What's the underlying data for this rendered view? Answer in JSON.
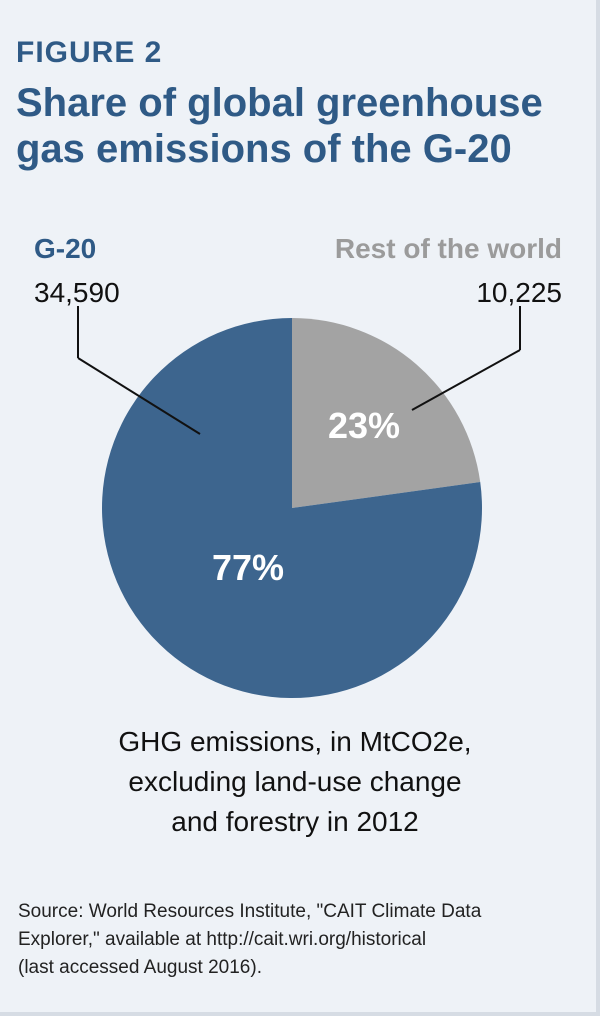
{
  "figure_label": "FIGURE 2",
  "title_line1": "Share of global greenhouse",
  "title_line2": "gas emissions of the G-20",
  "caption_lines": [
    "GHG emissions, in MtCO2e,",
    "excluding land-use change",
    "and forestry in 2012"
  ],
  "source_lines": [
    "Source: World Resources Institute, \"CAIT Climate Data",
    "Explorer,\" available at http://cait.wri.org/historical",
    "(last accessed August 2016)."
  ],
  "colors": {
    "g20": "#3d658e",
    "rest": "#a3a3a3",
    "label_blue": "#2f5a86",
    "label_gray": "#9b9b9b"
  },
  "chart_data": {
    "type": "pie",
    "slices": [
      {
        "name": "Rest of the world",
        "value": 10225,
        "value_label": "10,225",
        "percent_label": "23%"
      },
      {
        "name": "G-20",
        "value": 34590,
        "value_label": "34,590",
        "percent_label": "77%"
      }
    ]
  }
}
